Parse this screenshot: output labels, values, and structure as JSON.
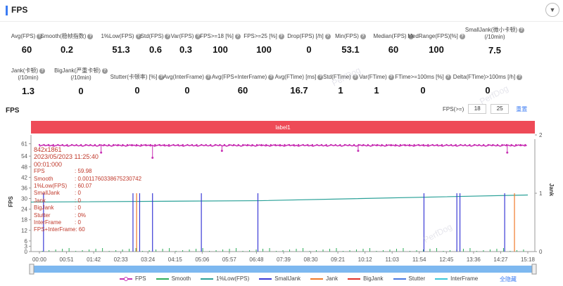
{
  "header": {
    "title": "FPS"
  },
  "metrics_row1": [
    {
      "label": "Avg(FPS)",
      "value": "60"
    },
    {
      "label": "Smooth(稳帧指数)",
      "value": "0.2"
    },
    {
      "label": "1%Low(FPS)",
      "value": "51.3"
    },
    {
      "label": "Std(FPS)",
      "value": "0.6"
    },
    {
      "label": "Var(FPS)",
      "value": "0.3"
    },
    {
      "label": "FPS>=18 [%]",
      "value": "100"
    },
    {
      "label": "FPS>=25 [%]",
      "value": "100"
    },
    {
      "label": "Drop(FPS) [/h]",
      "value": "0"
    },
    {
      "label": "Min(FPS)",
      "value": "53.1"
    },
    {
      "label": "Median(FPS)",
      "value": "60"
    },
    {
      "label": "MedRange(FPS)[%]",
      "value": "100"
    },
    {
      "label": "SmallJank(微小卡顿)",
      "label2": "(/10min)",
      "value": "7.5"
    }
  ],
  "metrics_row2": [
    {
      "label": "Jank(卡顿)",
      "label2": "(/10min)",
      "value": "1.3"
    },
    {
      "label": "BigJank(严重卡顿)",
      "label2": "(/10min)",
      "value": "0"
    },
    {
      "label": "Stutter(卡顿率) [%]",
      "value": "0"
    },
    {
      "label": "Avg(InterFrame)",
      "value": "0"
    },
    {
      "label": "Avg(FPS+InterFrame)",
      "value": "60"
    },
    {
      "label": "Avg(FTime) [ms]",
      "value": "16.7"
    },
    {
      "label": "Std(FTime)",
      "value": "1"
    },
    {
      "label": "Var(FTime)",
      "value": "1"
    },
    {
      "label": "FTime>=100ms [%]",
      "value": "0"
    },
    {
      "label": "Delta(FTime)>100ms [/h]",
      "value": "0"
    }
  ],
  "chart_section": {
    "title": "FPS",
    "threshold_label": "FPS(>=)",
    "threshold_1": "18",
    "threshold_2": "25",
    "reset_label": "重置",
    "band_label": "label1",
    "y_left_label": "FPS",
    "y_right_label": "Jank",
    "watermark": "PerfDog"
  },
  "tooltip": {
    "resolution": "842x1861",
    "datetime": "2023/05/2023 11:25:40",
    "elapsed": "00:01:000",
    "rows": [
      {
        "k": "FPS",
        "v": ": 59.98"
      },
      {
        "k": "Smooth",
        "v": ": 0.0011760338675230742"
      },
      {
        "k": "1%Low(FPS)",
        "v": ": 60.07"
      },
      {
        "k": "SmallJank",
        "v": ": 0"
      },
      {
        "k": "Jank",
        "v": ": 0"
      },
      {
        "k": "BigJank",
        "v": ": 0"
      },
      {
        "k": "Stutter",
        "v": ": 0%"
      },
      {
        "k": "InterFrame",
        "v": ": 0"
      }
    ],
    "last_row": "FPS+InterFrame: 60"
  },
  "legend": [
    {
      "name": "FPS",
      "color": "#c832b4",
      "dot": true
    },
    {
      "name": "Smooth",
      "color": "#2fae5a",
      "dot": false
    },
    {
      "name": "1%Low(FPS)",
      "color": "#2aa198",
      "dot": false
    },
    {
      "name": "SmallJank",
      "color": "#3a3ad6",
      "dot": false
    },
    {
      "name": "Jank",
      "color": "#f07a2a",
      "dot": false
    },
    {
      "name": "BigJank",
      "color": "#e0322a",
      "dot": false
    },
    {
      "name": "Stutter",
      "color": "#4a78e0",
      "dot": false
    },
    {
      "name": "InterFrame",
      "color": "#39c6d9",
      "dot": false
    }
  ],
  "hide_all_label": "全隐藏",
  "chart_data": {
    "type": "line",
    "x_ticks": [
      "00:00",
      "00:51",
      "01:42",
      "02:33",
      "03:24",
      "04:15",
      "05:06",
      "05:57",
      "06:48",
      "07:39",
      "08:30",
      "09:21",
      "10:12",
      "11:03",
      "11:54",
      "12:45",
      "13:36",
      "14:27",
      "15:18"
    ],
    "y_left_ticks": [
      0,
      3,
      6,
      12,
      18,
      24,
      30,
      36,
      42,
      48,
      54,
      61
    ],
    "y_left_range": [
      0,
      66
    ],
    "y_right_ticks": [
      0,
      1,
      2
    ],
    "y_right_range": [
      0,
      2
    ],
    "x_range_seconds": [
      0,
      950
    ],
    "series": [
      {
        "name": "FPS",
        "approx_value": 60
      },
      {
        "name": "1%Low(FPS)",
        "start": 28,
        "end": 32
      }
    ],
    "small_jank_times": [
      8,
      182,
      195,
      220,
      315,
      425,
      748,
      812,
      818,
      905
    ],
    "jank_times": [
      187,
      922
    ],
    "fps_dips": [
      [
        220,
        53.1
      ],
      [
        120,
        56
      ],
      [
        355,
        57
      ],
      [
        620,
        57
      ],
      [
        910,
        56
      ]
    ]
  }
}
